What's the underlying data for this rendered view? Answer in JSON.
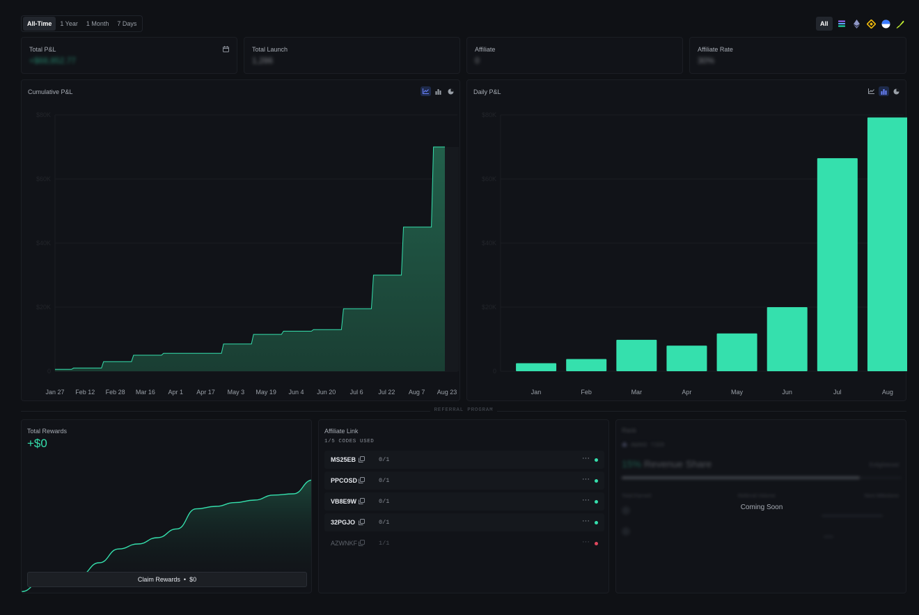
{
  "colors": {
    "accent": "#35e0ad",
    "fill_dark": "#1f4a3c",
    "danger": "#e0485e",
    "active_tool": "#6b83ff"
  },
  "time_range": {
    "options": [
      "All-Time",
      "1 Year",
      "1 Month",
      "7 Days"
    ],
    "selected": "All-Time"
  },
  "chains": {
    "all_label": "All",
    "icons": [
      "solana-icon",
      "ethereum-icon",
      "bnb-icon",
      "base-icon",
      "quill-icon"
    ]
  },
  "stats": [
    {
      "title": "Total P&L",
      "value": "+$68,852.77",
      "has_calendar": true
    },
    {
      "title": "Total Launch",
      "value": "1,286"
    },
    {
      "title": "Affiliate",
      "value": "0"
    },
    {
      "title": "Affiliate Rate",
      "value": "30%"
    }
  ],
  "cumulative": {
    "title": "Cumulative P&L",
    "x_labels": [
      "Jan 27",
      "Feb 12",
      "Feb 28",
      "Mar 16",
      "Apr 1",
      "Apr 17",
      "May 3",
      "May 19",
      "Jun 4",
      "Jun 20",
      "Jul 6",
      "Jul 22",
      "Aug 7",
      "Aug 23"
    ],
    "y_labels": [
      "0",
      "$20K",
      "$40K",
      "$60K",
      "$80K"
    ]
  },
  "chart_data": [
    {
      "type": "area",
      "title": "Cumulative P&L",
      "x": [
        "Jan 27",
        "Feb 12",
        "Feb 28",
        "Mar 16",
        "Apr 1",
        "Apr 17",
        "May 3",
        "May 19",
        "Jun 4",
        "Jun 20",
        "Jul 6",
        "Jul 22",
        "Aug 7",
        "Aug 23"
      ],
      "values": [
        0.6,
        1.0,
        3.0,
        5.0,
        5.6,
        5.6,
        8.5,
        11.5,
        12.5,
        13.0,
        19.5,
        30,
        45,
        70
      ],
      "ylim": [
        0,
        80
      ]
    },
    {
      "type": "bar",
      "title": "Daily P&L",
      "categories": [
        "Jan",
        "Feb",
        "Mar",
        "Apr",
        "May",
        "Jun",
        "Jul",
        "Aug"
      ],
      "values": [
        2.5,
        3.8,
        9.8,
        8.0,
        11.8,
        20.0,
        66.5,
        79.2
      ],
      "ylim": [
        0,
        80
      ]
    }
  ],
  "daily": {
    "title": "Daily P&L",
    "x_labels": [
      "Jan",
      "Feb",
      "Mar",
      "Apr",
      "May",
      "Jun",
      "Jul",
      "Aug"
    ],
    "y_labels": [
      "0",
      "$20K",
      "$40K",
      "$60K",
      "$80K"
    ]
  },
  "divider": {
    "label": "REFERRAL PROGRAM"
  },
  "rewards": {
    "title": "Total Rewards",
    "amount": "+$0",
    "claim_label": "Claim Rewards",
    "claim_amount": "$0",
    "curve": [
      0.02,
      0.1,
      0.15,
      0.15,
      0.25,
      0.36,
      0.4,
      0.45,
      0.52,
      0.68,
      0.7,
      0.73,
      0.75,
      0.79,
      0.8,
      0.91
    ]
  },
  "affiliate": {
    "title": "Affiliate Link",
    "codes_used": "1/5 CODES USED",
    "codes": [
      {
        "code": "MS25EB",
        "uses": "0/1",
        "status": "active"
      },
      {
        "code": "PPCOSD",
        "uses": "0/1",
        "status": "active"
      },
      {
        "code": "VB8E9W",
        "uses": "0/1",
        "status": "active"
      },
      {
        "code": "32PGJO",
        "uses": "0/1",
        "status": "active"
      },
      {
        "code": "AZWNKF",
        "uses": "1/1",
        "status": "used"
      }
    ]
  },
  "rank": {
    "title": "Rank",
    "tier": "AWAKE TIER",
    "share_pct": "15%",
    "share_label": "Revenue Share",
    "next": "Enlightened",
    "progress": 0.85,
    "col1": "Total Earned",
    "col2": "Referral Volume",
    "col3": "Next Milestone",
    "coming_soon": "Coming Soon"
  }
}
